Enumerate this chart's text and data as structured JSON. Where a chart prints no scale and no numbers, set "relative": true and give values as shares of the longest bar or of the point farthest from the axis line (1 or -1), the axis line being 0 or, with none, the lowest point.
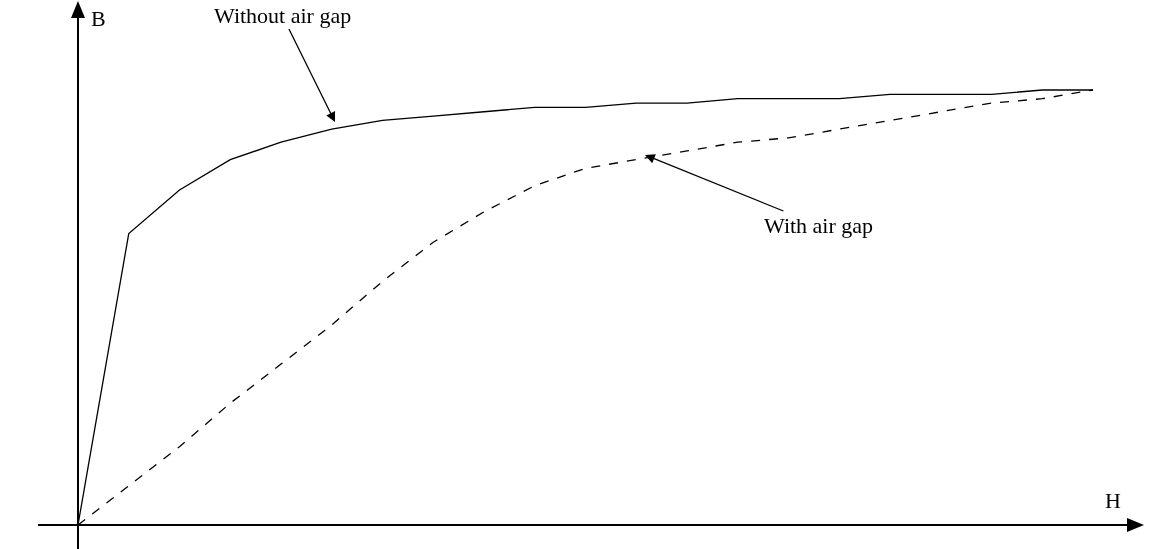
{
  "chart_data": {
    "type": "line",
    "relative": true,
    "xlabel": "H",
    "ylabel": "B",
    "categories": [
      null,
      null,
      null,
      null,
      null,
      null,
      null,
      null,
      null,
      null,
      null,
      null,
      null,
      null,
      null,
      null,
      null,
      null,
      null,
      null,
      null
    ],
    "series": [
      {
        "color": "#000000",
        "line_style": "solid",
        "values": [
          0,
          0.67,
          0.77,
          0.84,
          0.88,
          0.91,
          0.93,
          0.94,
          0.95,
          0.96,
          0.96,
          0.97,
          0.97,
          0.98,
          0.98,
          0.98,
          0.99,
          0.99,
          0.99,
          1.0,
          1
        ]
      },
      {
        "color": "#000000",
        "line_style": "dashed",
        "values": [
          0,
          0.09,
          0.18,
          0.28,
          0.37,
          0.46,
          0.56,
          0.65,
          0.72,
          0.78,
          0.82,
          0.84,
          0.86,
          0.88,
          0.89,
          0.91,
          0.93,
          0.95,
          0.97,
          0.98,
          1
        ]
      }
    ],
    "annotations": [
      "Without air gap",
      "With air gap"
    ],
    "grid": false,
    "marker": "none"
  }
}
